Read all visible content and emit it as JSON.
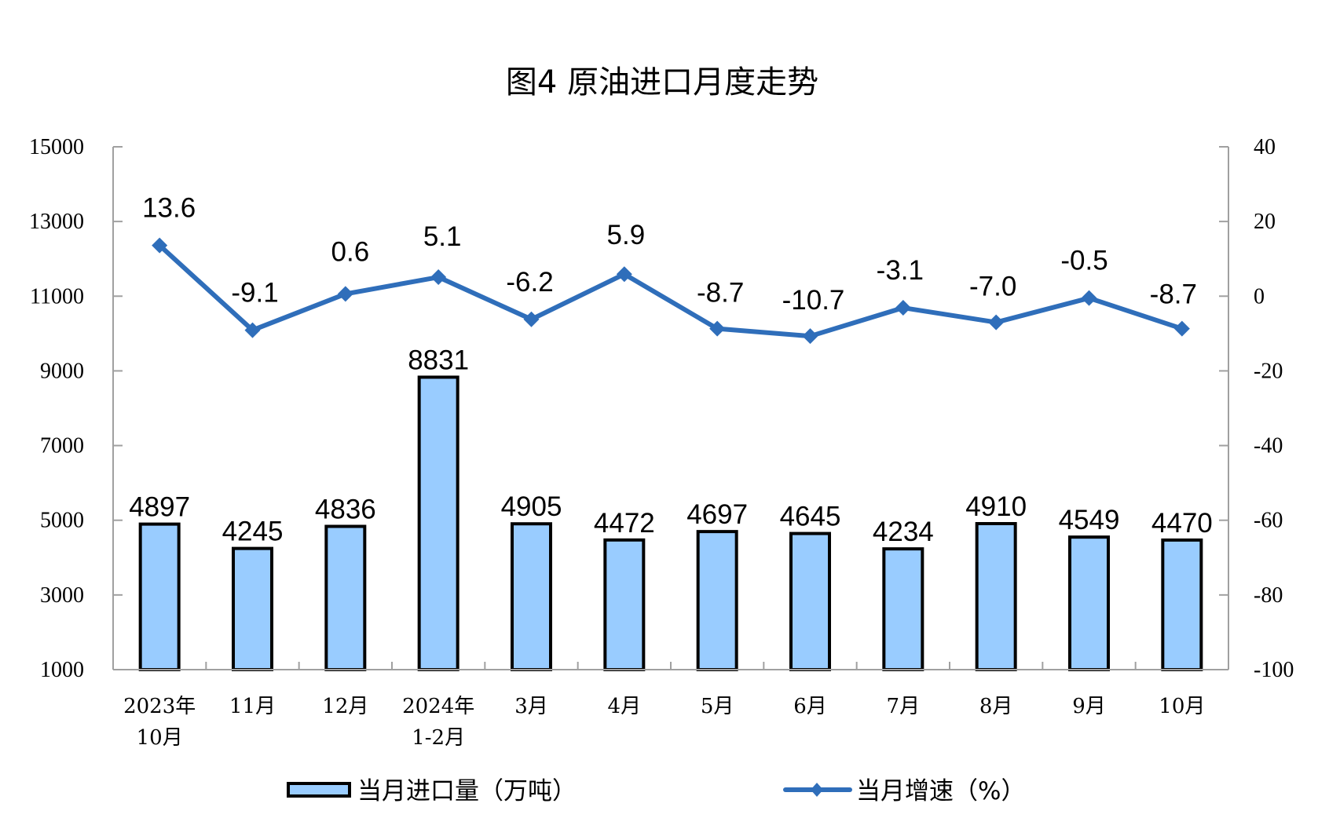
{
  "chart_data": {
    "type": "bar+line",
    "title": "图4  原油进口月度走势",
    "categories": [
      [
        "2023年",
        "10月"
      ],
      [
        "11月"
      ],
      [
        "12月"
      ],
      [
        "2024年",
        "1-2月"
      ],
      [
        "3月"
      ],
      [
        "4月"
      ],
      [
        "5月"
      ],
      [
        "6月"
      ],
      [
        "7月"
      ],
      [
        "8月"
      ],
      [
        "9月"
      ],
      [
        "10月"
      ]
    ],
    "series": [
      {
        "name": "当月进口量（万吨）",
        "type": "bar",
        "axis": "left",
        "color": "#99CCFF",
        "border": "#000000",
        "values": [
          4897,
          4245,
          4836,
          8831,
          4905,
          4472,
          4697,
          4645,
          4234,
          4910,
          4549,
          4470
        ],
        "labels": [
          "4897",
          "4245",
          "4836",
          "8831",
          "4905",
          "4472",
          "4697",
          "4645",
          "4234",
          "4910",
          "4549",
          "4470"
        ]
      },
      {
        "name": "当月增速（%）",
        "type": "line",
        "axis": "right",
        "color": "#2F6EBA",
        "marker": "diamond",
        "values": [
          13.6,
          -9.1,
          0.6,
          5.1,
          -6.2,
          5.9,
          -8.7,
          -10.7,
          -3.1,
          -7.0,
          -0.5,
          -8.7
        ],
        "labels": [
          "13.6",
          "-9.1",
          "0.6",
          "5.1",
          "-6.2",
          "5.9",
          "-8.7",
          "-10.7",
          "-3.1",
          "-7.0",
          "-0.5",
          "-8.7"
        ]
      }
    ],
    "left_axis": {
      "ylim": [
        1000,
        15000
      ],
      "ticks": [
        "15000",
        "13000",
        "11000",
        "9000",
        "7000",
        "5000",
        "3000",
        "1000"
      ]
    },
    "right_axis": {
      "ylim": [
        -100,
        40
      ],
      "ticks": [
        "40",
        "20",
        "0",
        "-20",
        "-40",
        "-60",
        "-80",
        "-100"
      ]
    },
    "xlabel": "",
    "ylabel": "",
    "grid": false,
    "legend_position": "bottom"
  },
  "legend": {
    "bar_label": "当月进口量（万吨）",
    "line_label": "当月增速（%）"
  }
}
